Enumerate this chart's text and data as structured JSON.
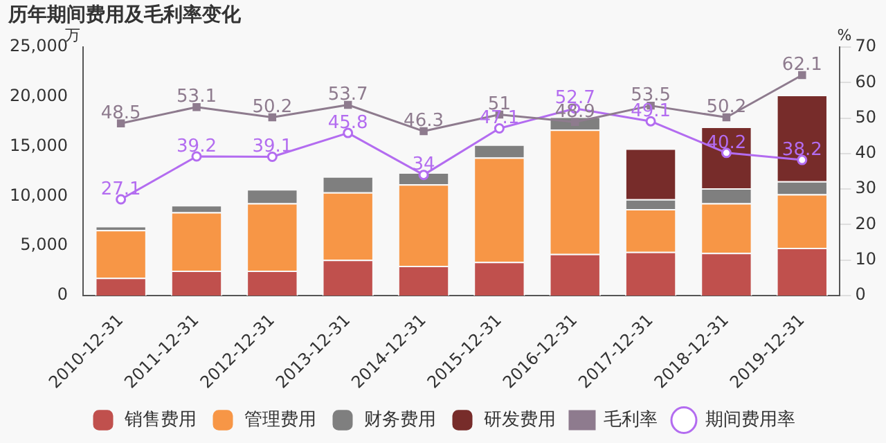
{
  "chart_data": {
    "type": "bar",
    "title": "历年期间费用及毛利率变化",
    "ylabel": "万",
    "y2label": "%",
    "categories": [
      "2010-12-31",
      "2011-12-31",
      "2012-12-31",
      "2013-12-31",
      "2014-12-31",
      "2015-12-31",
      "2016-12-31",
      "2017-12-31",
      "2018-12-31",
      "2019-12-31"
    ],
    "stacked": true,
    "series": [
      {
        "name": "销售费用",
        "color": "#c0504d",
        "values": [
          1800,
          2500,
          2500,
          3600,
          3000,
          3400,
          4200,
          4400,
          4300,
          4800
        ]
      },
      {
        "name": "管理费用",
        "color": "#f79646",
        "values": [
          4800,
          5900,
          6800,
          6800,
          8200,
          10500,
          12500,
          4300,
          5000,
          5400
        ]
      },
      {
        "name": "财务费用",
        "color": "#7f7f7f",
        "values": [
          400,
          700,
          1400,
          1600,
          1200,
          1300,
          1300,
          1000,
          1500,
          1300
        ]
      },
      {
        "name": "研发费用",
        "color": "#772c2a",
        "values": [
          null,
          null,
          null,
          null,
          null,
          null,
          null,
          5100,
          6200,
          8700
        ]
      },
      {
        "name": "毛利率",
        "type": "line",
        "axis": "y2",
        "color": "#8e7b8e",
        "marker": "square",
        "data_labels": true,
        "values": [
          48.5,
          53.1,
          50.2,
          53.7,
          46.3,
          51,
          48.9,
          53.5,
          50.2,
          62.1
        ]
      },
      {
        "name": "期间费用率",
        "type": "line",
        "axis": "y2",
        "color": "#b36cf0",
        "marker": "circle",
        "data_labels": true,
        "values": [
          27.1,
          39.2,
          39.1,
          45.8,
          34,
          47.1,
          52.7,
          49.1,
          40.2,
          38.2
        ]
      }
    ],
    "ylim": [
      0,
      25000
    ],
    "yticks": [
      0,
      {
        "value": 5000,
        "label": "5,000"
      },
      {
        "value": 10000,
        "label": "10,000"
      },
      {
        "value": 15000,
        "label": "15,000"
      },
      {
        "value": 20000,
        "label": "20,000"
      },
      {
        "value": 25000,
        "label": "25,000"
      }
    ],
    "y2lim": [
      0,
      70
    ],
    "y2ticks": [
      0,
      10,
      20,
      30,
      40,
      50,
      60,
      70
    ],
    "grid": false,
    "legend": "bottom"
  }
}
